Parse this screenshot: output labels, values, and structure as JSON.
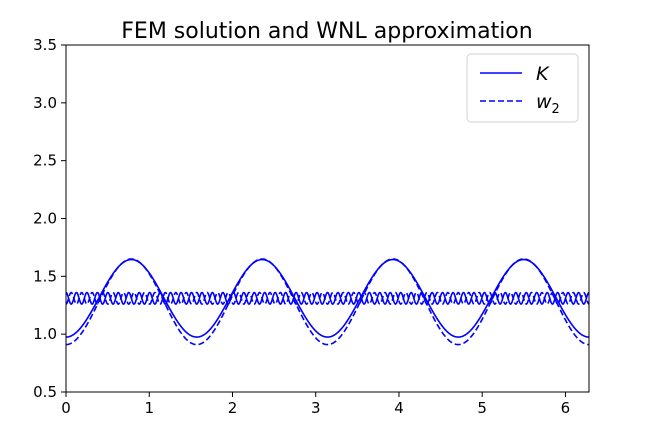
{
  "chart_data": {
    "type": "line",
    "title": "FEM solution and WNL approximation",
    "xlabel": "",
    "ylabel": "",
    "xlim": [
      0,
      6.283
    ],
    "ylim": [
      0.5,
      3.5
    ],
    "xticks": [
      "0",
      "1",
      "2",
      "3",
      "4",
      "5",
      "6"
    ],
    "xtick_values": [
      0,
      1,
      2,
      3,
      4,
      5,
      6
    ],
    "yticks": [
      "0.5",
      "1.0",
      "1.5",
      "2.0",
      "2.5",
      "3.0",
      "3.5"
    ],
    "ytick_values": [
      0.5,
      1.0,
      1.5,
      2.0,
      2.5,
      3.0,
      3.5
    ],
    "grid": false,
    "legend_position": "top-right",
    "series_color": "#0000ff",
    "series": [
      {
        "name": "K",
        "style": "solid",
        "description": "base 1.31, amplitude 0.335, period 1.571 (min 0.975 at x=0, max 1.645 at x≈0.785)",
        "x": [
          0,
          0.393,
          0.785,
          1.178,
          1.571,
          1.963,
          2.356,
          2.749,
          3.142,
          3.534,
          3.927,
          4.32,
          4.712,
          5.105,
          5.498,
          5.89,
          6.283
        ],
        "values": [
          0.975,
          1.31,
          1.645,
          1.31,
          0.975,
          1.31,
          1.645,
          1.31,
          0.975,
          1.31,
          1.645,
          1.31,
          0.975,
          1.31,
          1.645,
          1.31,
          0.975
        ]
      },
      {
        "name": "K",
        "style": "solid",
        "description": "high-frequency ripple: base 1.31, amplitude 0.05, 25 periods",
        "x": [
          0,
          0.126,
          0.251,
          6.283
        ],
        "values": [
          1.36,
          1.26,
          1.36,
          1.36
        ]
      },
      {
        "name": "w",
        "subscript": "2",
        "style": "dashed",
        "description": "base 1.28, amplitude 0.37, period 1.571 (min 0.91, max 1.65)",
        "x": [
          0,
          0.393,
          0.785,
          1.178,
          1.571,
          1.963,
          2.356,
          2.749,
          3.142,
          3.534,
          3.927,
          4.32,
          4.712,
          5.105,
          5.498,
          5.89,
          6.283
        ],
        "values": [
          0.91,
          1.28,
          1.65,
          1.28,
          0.91,
          1.28,
          1.65,
          1.28,
          0.91,
          1.28,
          1.65,
          1.28,
          0.91,
          1.28,
          1.65,
          1.28,
          0.91
        ]
      },
      {
        "name": "w",
        "subscript": "2",
        "style": "dashed",
        "description": "high-frequency ripple: base 1.31, amplitude 0.05, 25 periods, phase shifted",
        "x": [
          0,
          0.126,
          0.251,
          6.283
        ],
        "values": [
          1.26,
          1.36,
          1.26,
          1.26
        ]
      }
    ],
    "legend": [
      {
        "label": "K",
        "style": "solid"
      },
      {
        "label": "w",
        "subscript": "2",
        "style": "dashed"
      }
    ]
  }
}
